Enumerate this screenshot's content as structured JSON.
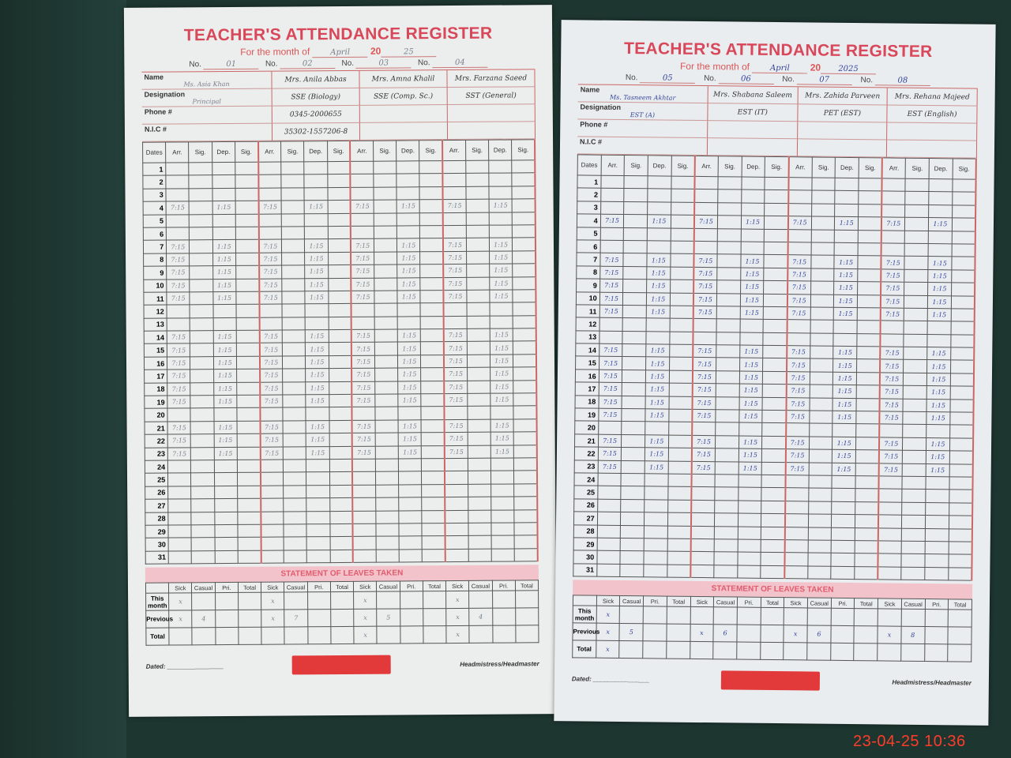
{
  "pages": [
    {
      "title": "TEACHER'S ATTENDANCE REGISTER",
      "month_label": "For the month of",
      "month": "April",
      "year_label": "20",
      "year": "25",
      "no_label": "No.",
      "nos": [
        "01",
        "02",
        "03",
        "04"
      ],
      "row_labels": [
        "Name",
        "Designation",
        "Phone #",
        "N.I.C #"
      ],
      "teachers": [
        {
          "name": "Ms. Asia Khan",
          "designation": "Principal",
          "phone": "",
          "nic": ""
        },
        {
          "name": "Mrs. Anila Abbas",
          "designation": "SSE (Biology)",
          "phone": "0345-2000655",
          "nic": "35302-1557206-8"
        },
        {
          "name": "Mrs. Amna Khalil",
          "designation": "SSE (Comp. Sc.)",
          "phone": "",
          "nic": ""
        },
        {
          "name": "Mrs. Farzana Saeed",
          "designation": "SST (General)",
          "phone": "",
          "nic": ""
        }
      ],
      "leaves": {
        "this_month": [
          "x",
          "",
          "",
          "",
          "x",
          "",
          "",
          "",
          "x",
          "",
          "",
          "",
          "x",
          "",
          "",
          ""
        ],
        "previous": [
          "x",
          "4",
          "",
          "",
          "x",
          "7",
          "",
          "",
          "x",
          "5",
          "",
          "",
          "x",
          "4",
          "",
          ""
        ],
        "total": [
          "",
          "",
          "",
          "",
          "",
          "",
          "",
          "",
          "x",
          "",
          "",
          "",
          "x",
          "",
          "",
          ""
        ]
      },
      "ink": "grey"
    },
    {
      "title": "TEACHER'S ATTENDANCE REGISTER",
      "month_label": "For the month of",
      "month": "April",
      "year_label": "20",
      "year": "2025",
      "no_label": "No.",
      "nos": [
        "05",
        "06",
        "07",
        "08"
      ],
      "row_labels": [
        "Name",
        "Designation",
        "Phone #",
        "N.I.C #"
      ],
      "teachers": [
        {
          "name": "Ms. Tasneem Akhtar",
          "designation": "EST (A)",
          "phone": "",
          "nic": ""
        },
        {
          "name": "Mrs. Shabana Saleem",
          "designation": "EST (IT)",
          "phone": "",
          "nic": ""
        },
        {
          "name": "Mrs. Zahida Parveen",
          "designation": "PET (EST)",
          "phone": "",
          "nic": ""
        },
        {
          "name": "Mrs. Rehana Majeed",
          "designation": "EST (English)",
          "phone": "",
          "nic": ""
        }
      ],
      "leaves": {
        "this_month": [
          "x",
          "",
          "",
          "",
          "",
          "",
          "",
          "",
          "",
          "",
          "",
          "",
          "",
          "",
          "",
          ""
        ],
        "previous": [
          "x",
          "5",
          "",
          "",
          "x",
          "6",
          "",
          "",
          "x",
          "6",
          "",
          "",
          "x",
          "8",
          "",
          ""
        ],
        "total": [
          "x",
          "",
          "",
          "",
          "",
          "",
          "",
          "",
          "",
          "",
          "",
          "",
          "",
          "",
          "",
          ""
        ]
      },
      "ink": "blue"
    }
  ],
  "table_headers": {
    "dates": "Dates",
    "cols": [
      "Arr.",
      "Sig.",
      "Dep.",
      "Sig."
    ]
  },
  "dates": [
    "1",
    "2",
    "3",
    "4",
    "5",
    "6",
    "7",
    "8",
    "9",
    "10",
    "11",
    "12",
    "13",
    "14",
    "15",
    "16",
    "17",
    "18",
    "19",
    "20",
    "21",
    "22",
    "23",
    "24",
    "25",
    "26",
    "27",
    "28",
    "29",
    "30",
    "31"
  ],
  "arrival_time": "7:15",
  "departure_time": "1:15",
  "attended_dates": {
    "0": [
      4,
      7,
      8,
      9,
      10,
      11,
      14,
      15,
      16,
      17,
      18,
      19,
      21,
      22,
      23
    ],
    "1": [
      4,
      7,
      8,
      9,
      10,
      11,
      14,
      15,
      16,
      17,
      18,
      19,
      21,
      22,
      23
    ]
  },
  "leave_section": {
    "title": "STATEMENT OF LEAVES TAKEN",
    "cols": [
      "Sick",
      "Casual",
      "Pri.",
      "Total"
    ],
    "rows": [
      "This month",
      "Previous",
      "Total"
    ]
  },
  "footer": {
    "dated": "Dated:",
    "signatory": "Headmistress/Headmaster"
  },
  "timestamp": "23-04-25  10:36"
}
